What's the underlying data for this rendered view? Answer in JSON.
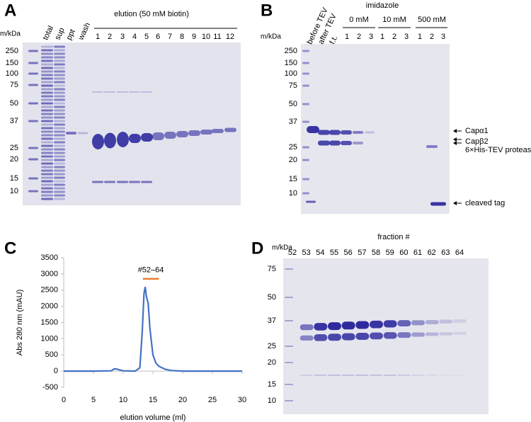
{
  "panel_labels": [
    "A",
    "B",
    "C",
    "D"
  ],
  "panel_a": {
    "marker_unit": "m/kDa",
    "markers": [
      250,
      150,
      100,
      75,
      50,
      37,
      25,
      20,
      15,
      10
    ],
    "lanes": [
      "total",
      "sup",
      "ppt",
      "wash"
    ],
    "elution_title": "elution (50 mM biotin)",
    "fractions": [
      1,
      2,
      3,
      4,
      5,
      6,
      7,
      8,
      9,
      10,
      11,
      12
    ]
  },
  "panel_b": {
    "marker_unit": "m/kDa",
    "markers": [
      250,
      150,
      100,
      75,
      50,
      37,
      25,
      20,
      15,
      10
    ],
    "lanes": [
      "before TEV",
      "after TEV",
      "f.t."
    ],
    "imidazole_title": "imidazole",
    "groups": [
      {
        "label": "0 mM",
        "fractions": [
          1,
          2,
          3
        ]
      },
      {
        "label": "10 mM",
        "fractions": [
          1,
          2,
          3
        ]
      },
      {
        "label": "500 mM",
        "fractions": [
          1,
          2,
          3
        ]
      }
    ],
    "annotations": [
      "Capα1",
      "Capβ2",
      "6×His-TEV protease",
      "cleaved tag"
    ]
  },
  "chart_data": {
    "type": "line",
    "xlabel": "elution volume (ml)",
    "ylabel": "Abs 280 nm (mAU)",
    "x": [
      0,
      5,
      8,
      8.5,
      9,
      9.5,
      10,
      12,
      12.8,
      13.2,
      13.5,
      13.7,
      13.9,
      14.2,
      14.5,
      15,
      15.5,
      16,
      17,
      18,
      20,
      25,
      30
    ],
    "values": [
      0,
      0,
      10,
      70,
      60,
      30,
      10,
      0,
      100,
      1200,
      2400,
      2600,
      2300,
      2100,
      1300,
      500,
      250,
      150,
      60,
      20,
      0,
      0,
      0
    ],
    "color": "#4472c4",
    "xlim": [
      0,
      30
    ],
    "ylim": [
      -500,
      3500
    ],
    "xticks": [
      0,
      5,
      10,
      15,
      20,
      25,
      30
    ],
    "yticks": [
      -500,
      0,
      500,
      1000,
      1500,
      2000,
      2500,
      3000,
      3500
    ],
    "annotation": "#52–64",
    "annotation_range": [
      13.3,
      16
    ],
    "annotation_color": "#ed7d31"
  },
  "panel_d": {
    "title": "fraction #",
    "marker_unit": "m/kDa",
    "markers": [
      75,
      50,
      37,
      25,
      20,
      15,
      10
    ],
    "fractions": [
      52,
      53,
      54,
      55,
      56,
      57,
      58,
      59,
      60,
      61,
      62,
      63,
      64
    ]
  }
}
